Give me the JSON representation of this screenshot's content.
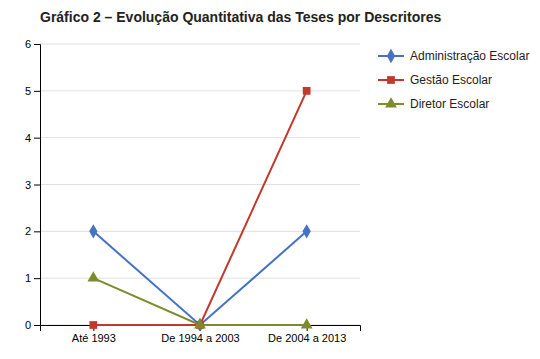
{
  "chart_data": {
    "type": "line",
    "title": "Gráfico 2 – Evolução Quantitativa das Teses por Descritores",
    "categories": [
      "Até 1993",
      "De 1994 a 2003",
      "De 2004 a 2013"
    ],
    "series": [
      {
        "name": "Administração Escolar",
        "values": [
          2,
          0,
          2
        ],
        "color": "#4472C4",
        "marker": "diamond"
      },
      {
        "name": "Gestão Escolar",
        "values": [
          0,
          0,
          5
        ],
        "color": "#C0392B",
        "marker": "square"
      },
      {
        "name": "Diretor Escolar",
        "values": [
          1,
          0,
          0
        ],
        "color": "#7D8B2D",
        "marker": "triangle"
      }
    ],
    "ylim": [
      0,
      6
    ],
    "yticks": [
      0,
      1,
      2,
      3,
      4,
      5,
      6
    ],
    "grid": true,
    "legend": "right"
  }
}
